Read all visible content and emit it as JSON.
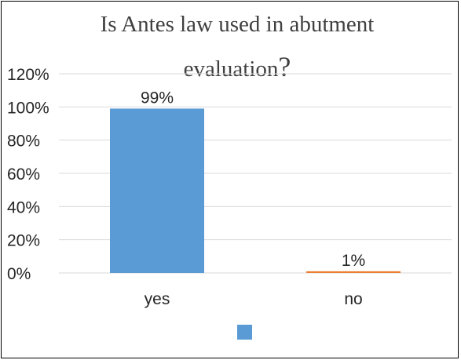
{
  "chart_data": {
    "type": "bar",
    "title_line1": "Is Antes law used in abutment",
    "title_line2": "evaluation",
    "title_qmark": "?",
    "categories": [
      "yes",
      "no"
    ],
    "values": [
      99,
      1
    ],
    "data_labels": [
      "99%",
      "1%"
    ],
    "bar_colors": [
      "#5b9bd5",
      "#ed7d31"
    ],
    "ylim": [
      0,
      120
    ],
    "yticks": [
      0,
      20,
      40,
      60,
      80,
      100,
      120
    ],
    "ytick_labels": [
      "0%",
      "20%",
      "40%",
      "60%",
      "80%",
      "100%",
      "120%"
    ],
    "grid": true,
    "gridline_color": "#d9d9d9",
    "legend": {
      "placement": "bottom",
      "swatch_color": "#5b9bd5"
    }
  }
}
